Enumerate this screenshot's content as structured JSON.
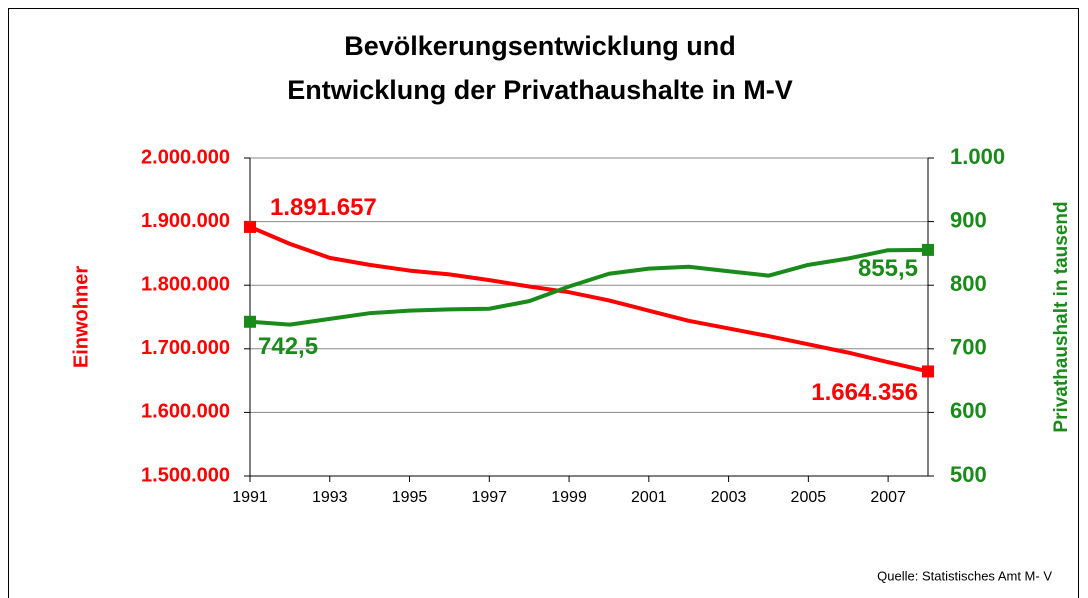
{
  "chart_data": {
    "type": "line",
    "title": [
      "Bevölkerungsentwicklung und",
      "Entwicklung der Privathaushalte in M-V"
    ],
    "ylabel": "Einwohner",
    "y2label": "Privathaushalt in tausend",
    "source": "Quelle: Statistisches Amt M- V",
    "x": [
      1991,
      1992,
      1993,
      1994,
      1995,
      1996,
      1997,
      1998,
      1999,
      2000,
      2001,
      2002,
      2003,
      2004,
      2005,
      2006,
      2007,
      2008
    ],
    "xlim": [
      1991,
      2008
    ],
    "xticks": [
      1991,
      1993,
      1995,
      1997,
      1999,
      2001,
      2003,
      2005,
      2007
    ],
    "ylim": [
      1500000,
      2000000
    ],
    "yticks": [
      {
        "value": 1500000,
        "label": "1.500.000"
      },
      {
        "value": 1600000,
        "label": "1.600.000"
      },
      {
        "value": 1700000,
        "label": "1.700.000"
      },
      {
        "value": 1800000,
        "label": "1.800.000"
      },
      {
        "value": 1900000,
        "label": "1.900.000"
      },
      {
        "value": 2000000,
        "label": "2.000.000"
      }
    ],
    "y2lim": [
      500,
      1000
    ],
    "y2ticks": [
      500,
      600,
      700,
      800,
      900,
      {
        "value": 1000,
        "label": "1.000"
      }
    ],
    "grid": true,
    "series": [
      {
        "name": "Einwohner",
        "color": "#ff0000",
        "axis": "y",
        "values": [
          1891657,
          1865000,
          1843000,
          1832000,
          1823000,
          1817000,
          1808000,
          1798000,
          1789000,
          1776000,
          1760000,
          1744000,
          1732000,
          1720000,
          1707000,
          1694000,
          1679000,
          1664356
        ],
        "value_labels": [
          "1.891.657",
          null,
          null,
          null,
          null,
          null,
          null,
          null,
          null,
          null,
          null,
          null,
          null,
          null,
          null,
          null,
          null,
          "1.664.356"
        ]
      },
      {
        "name": "Privathaushalte",
        "color": "#1a8a1a",
        "axis": "y2",
        "values": [
          742.5,
          738,
          747,
          756,
          760,
          762,
          763,
          775,
          798,
          818,
          826,
          829,
          822,
          815,
          832,
          842,
          855,
          855.5
        ],
        "value_labels": [
          "742,5",
          null,
          null,
          null,
          null,
          null,
          null,
          null,
          null,
          null,
          null,
          null,
          null,
          null,
          null,
          null,
          null,
          "855,5"
        ]
      }
    ]
  }
}
